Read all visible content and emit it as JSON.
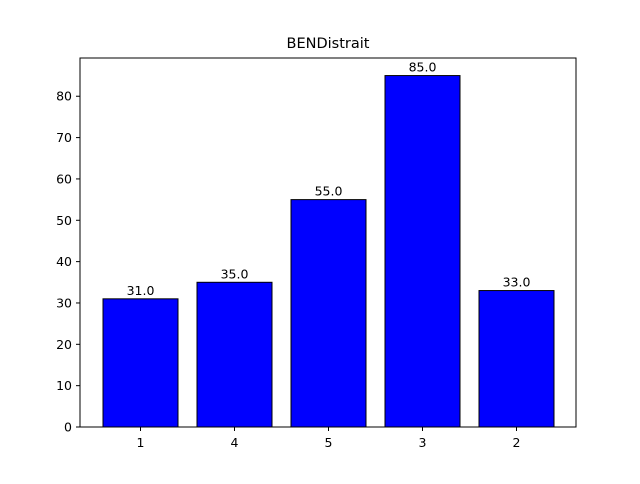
{
  "chart_data": {
    "type": "bar",
    "title": "BENDistrait",
    "xlabel": "",
    "ylabel": "",
    "categories": [
      "1",
      "4",
      "5",
      "3",
      "2"
    ],
    "values": [
      31.0,
      35.0,
      55.0,
      85.0,
      33.0
    ],
    "data_labels": [
      "31.0",
      "35.0",
      "55.0",
      "85.0",
      "33.0"
    ],
    "ylim": [
      0,
      89.25
    ],
    "yticks": [
      0,
      10,
      20,
      30,
      40,
      50,
      60,
      70,
      80
    ],
    "grid": false,
    "legend": "none",
    "colors": {
      "bar_fill": "#0000ff",
      "bar_edge": "#000000",
      "axes": "#000000"
    }
  }
}
